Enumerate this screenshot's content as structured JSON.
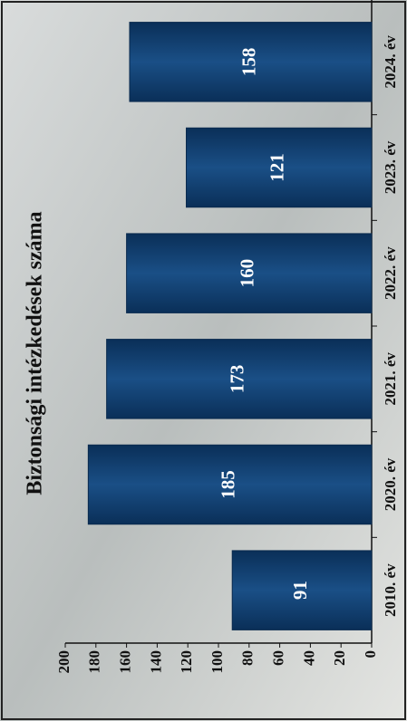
{
  "chart_data": {
    "type": "bar",
    "title": "Biztonsági intézkedések száma",
    "categories": [
      "2010. év",
      "2020. év",
      "2021. év",
      "2022. év",
      "2023. év",
      "2024. év"
    ],
    "values": [
      91,
      185,
      173,
      160,
      121,
      158
    ],
    "color": "#0f3d6e",
    "ylim": [
      0,
      200
    ],
    "yticks": [
      0,
      20,
      40,
      60,
      80,
      100,
      120,
      140,
      160,
      180,
      200
    ],
    "grid": false
  }
}
